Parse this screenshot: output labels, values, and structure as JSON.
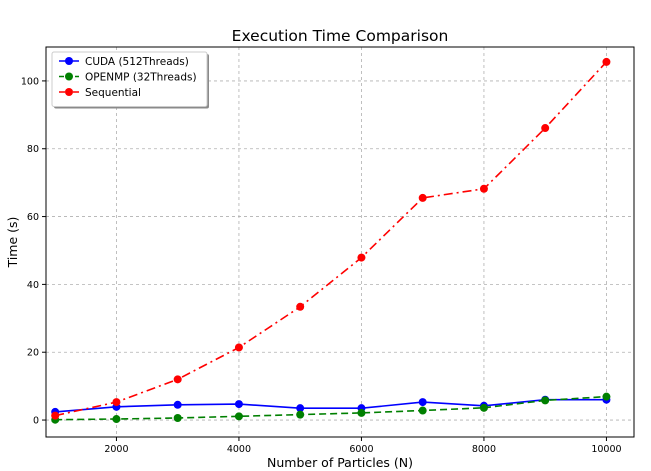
{
  "chart_data": {
    "type": "line",
    "title": "Execution Time Comparison",
    "xlabel": "Number of Particles (N)",
    "ylabel": "Time (s)",
    "x": [
      1000,
      2000,
      3000,
      4000,
      5000,
      6000,
      7000,
      8000,
      9000,
      10000
    ],
    "xlim": [
      850,
      10450
    ],
    "ylim": [
      -5,
      110
    ],
    "xticks": [
      2000,
      4000,
      6000,
      8000,
      10000
    ],
    "yticks": [
      0,
      20,
      40,
      60,
      80,
      100
    ],
    "grid": true,
    "legend_position": "top-left",
    "series": [
      {
        "name": "CUDA (512Threads)",
        "color": "#0000ff",
        "line_style": "solid",
        "marker": "circle",
        "values": [
          2.4,
          3.9,
          4.5,
          4.7,
          3.5,
          3.5,
          5.3,
          4.2,
          6.0,
          6.0
        ]
      },
      {
        "name": "OPENMP (32Threads)",
        "color": "#008000",
        "line_style": "dashed",
        "marker": "circle",
        "values": [
          0.1,
          0.3,
          0.6,
          1.1,
          1.6,
          2.1,
          2.8,
          3.6,
          5.8,
          6.9
        ]
      },
      {
        "name": "Sequential",
        "color": "#ff0000",
        "line_style": "dashdot",
        "marker": "circle",
        "values": [
          1.3,
          5.3,
          12.0,
          21.4,
          33.4,
          47.9,
          65.5,
          68.2,
          86.1,
          105.6
        ]
      }
    ]
  }
}
